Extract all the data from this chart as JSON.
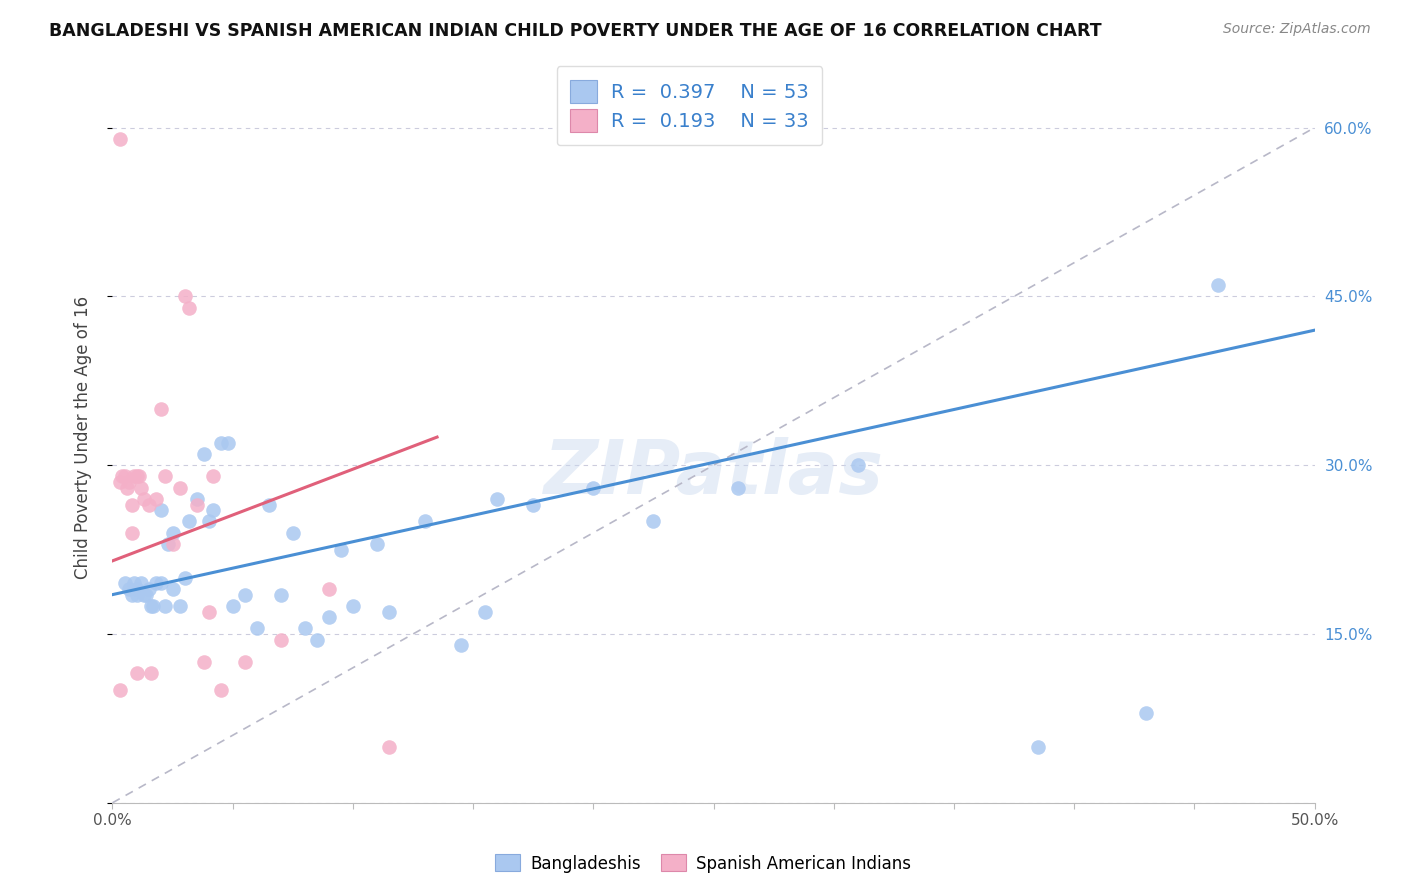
{
  "title": "BANGLADESHI VS SPANISH AMERICAN INDIAN CHILD POVERTY UNDER THE AGE OF 16 CORRELATION CHART",
  "source": "Source: ZipAtlas.com",
  "ylabel": "Child Poverty Under the Age of 16",
  "xlim": [
    0.0,
    0.5
  ],
  "ylim": [
    0.0,
    0.65
  ],
  "xticks": [
    0.0,
    0.05,
    0.1,
    0.15,
    0.2,
    0.25,
    0.3,
    0.35,
    0.4,
    0.45,
    0.5
  ],
  "xtick_labels_show": [
    "0.0%",
    "",
    "",
    "",
    "",
    "",
    "",
    "",
    "",
    "",
    "50.0%"
  ],
  "ytick_positions": [
    0.0,
    0.15,
    0.3,
    0.45,
    0.6
  ],
  "ytick_labels_left": [
    "",
    "",
    "",
    "",
    ""
  ],
  "right_ytick_labels": [
    "15.0%",
    "30.0%",
    "45.0%",
    "60.0%"
  ],
  "right_ytick_positions": [
    0.15,
    0.3,
    0.45,
    0.6
  ],
  "blue_color": "#aac8f0",
  "pink_color": "#f4b0c8",
  "blue_line_color": "#4a8fd4",
  "pink_line_color": "#e0607a",
  "dashed_line_color": "#b8b8c8",
  "legend_R1": "0.397",
  "legend_N1": "53",
  "legend_R2": "0.193",
  "legend_N2": "33",
  "legend_label1": "Bangladeshis",
  "legend_label2": "Spanish American Indians",
  "watermark": "ZIPatlas",
  "blue_scatter_x": [
    0.005,
    0.007,
    0.008,
    0.009,
    0.01,
    0.01,
    0.012,
    0.013,
    0.014,
    0.015,
    0.016,
    0.017,
    0.018,
    0.02,
    0.02,
    0.022,
    0.023,
    0.025,
    0.025,
    0.028,
    0.03,
    0.032,
    0.035,
    0.038,
    0.04,
    0.042,
    0.045,
    0.048,
    0.05,
    0.055,
    0.06,
    0.065,
    0.07,
    0.075,
    0.08,
    0.085,
    0.09,
    0.095,
    0.1,
    0.11,
    0.115,
    0.13,
    0.145,
    0.155,
    0.16,
    0.175,
    0.2,
    0.225,
    0.26,
    0.31,
    0.385,
    0.43,
    0.46
  ],
  "blue_scatter_y": [
    0.195,
    0.19,
    0.185,
    0.195,
    0.185,
    0.19,
    0.195,
    0.185,
    0.185,
    0.19,
    0.175,
    0.175,
    0.195,
    0.195,
    0.26,
    0.175,
    0.23,
    0.19,
    0.24,
    0.175,
    0.2,
    0.25,
    0.27,
    0.31,
    0.25,
    0.26,
    0.32,
    0.32,
    0.175,
    0.185,
    0.155,
    0.265,
    0.185,
    0.24,
    0.155,
    0.145,
    0.165,
    0.225,
    0.175,
    0.23,
    0.17,
    0.25,
    0.14,
    0.17,
    0.27,
    0.265,
    0.28,
    0.25,
    0.28,
    0.3,
    0.05,
    0.08,
    0.46
  ],
  "pink_scatter_x": [
    0.003,
    0.003,
    0.003,
    0.004,
    0.005,
    0.006,
    0.007,
    0.008,
    0.008,
    0.009,
    0.01,
    0.01,
    0.011,
    0.012,
    0.013,
    0.015,
    0.016,
    0.018,
    0.02,
    0.022,
    0.025,
    0.028,
    0.03,
    0.032,
    0.035,
    0.038,
    0.04,
    0.042,
    0.045,
    0.055,
    0.07,
    0.09,
    0.115
  ],
  "pink_scatter_y": [
    0.59,
    0.285,
    0.1,
    0.29,
    0.29,
    0.28,
    0.285,
    0.265,
    0.24,
    0.29,
    0.29,
    0.115,
    0.29,
    0.28,
    0.27,
    0.265,
    0.115,
    0.27,
    0.35,
    0.29,
    0.23,
    0.28,
    0.45,
    0.44,
    0.265,
    0.125,
    0.17,
    0.29,
    0.1,
    0.125,
    0.145,
    0.19,
    0.05
  ],
  "blue_line_x": [
    0.0,
    0.5
  ],
  "blue_line_y": [
    0.185,
    0.42
  ],
  "pink_line_x": [
    0.0,
    0.135
  ],
  "pink_line_y": [
    0.215,
    0.325
  ],
  "diag_line_x": [
    0.0,
    0.5
  ],
  "diag_line_y": [
    0.0,
    0.6
  ]
}
